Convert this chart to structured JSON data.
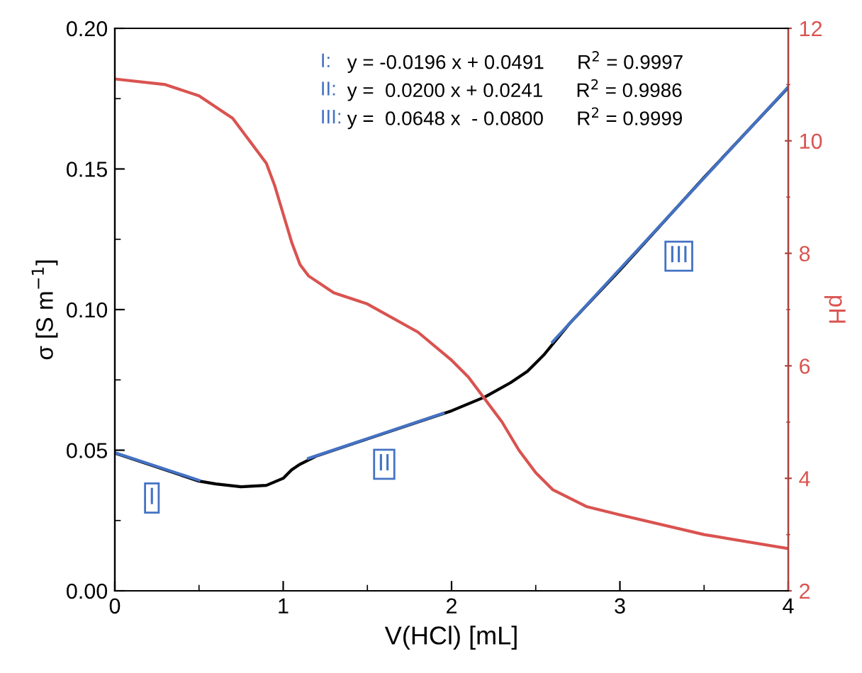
{
  "chart_data": {
    "type": "line",
    "xlabel": "V(HCl) [mL]",
    "ylabel": "σ [S m$^{−1}$]",
    "y2label": "pH",
    "xlim": [
      0,
      4
    ],
    "xticks": [
      0,
      1,
      2,
      3,
      4
    ],
    "ylim": [
      0,
      0.2
    ],
    "yticks": [
      {
        "value": 0,
        "label": "0.00"
      },
      {
        "value": 0.05,
        "label": "0.05"
      },
      {
        "value": 0.1,
        "label": "0.10"
      },
      {
        "value": 0.15,
        "label": "0.15"
      },
      {
        "value": 0.2,
        "label": "0.20"
      }
    ],
    "y2lim": [
      2,
      12
    ],
    "y2ticks": [
      2,
      4,
      6,
      8,
      10,
      12
    ],
    "grid": false,
    "legend": false,
    "marker": "none",
    "line_style": "solid",
    "series": [
      {
        "color": "#000000",
        "x": [
          0,
          0.25,
          0.5,
          0.6,
          0.75,
          0.9,
          1.0,
          1.05,
          1.1,
          1.2,
          1.5,
          1.8,
          2.0,
          2.2,
          2.35,
          2.45,
          2.55,
          2.7,
          3.0,
          3.5,
          4.0
        ],
        "values": [
          0.049,
          0.044,
          0.039,
          0.038,
          0.037,
          0.0375,
          0.04,
          0.043,
          0.045,
          0.048,
          0.054,
          0.06,
          0.064,
          0.069,
          0.074,
          0.078,
          0.084,
          0.095,
          0.114,
          0.147,
          0.179
        ]
      },
      {
        "color": "#4472c4",
        "x": [
          0,
          0.5
        ],
        "values": [
          0.0491,
          0.0393
        ]
      },
      {
        "color": "#4472c4",
        "x": [
          1.15,
          1.95
        ],
        "values": [
          0.0471,
          0.0631
        ]
      },
      {
        "color": "#4472c4",
        "x": [
          2.6,
          4.0
        ],
        "values": [
          0.0885,
          0.1792
        ]
      },
      {
        "color": "#d95350",
        "axis": "y2",
        "x": [
          0,
          0.3,
          0.5,
          0.7,
          0.8,
          0.9,
          0.95,
          1.0,
          1.05,
          1.1,
          1.15,
          1.3,
          1.5,
          1.8,
          2.0,
          2.1,
          2.2,
          2.3,
          2.4,
          2.5,
          2.6,
          2.8,
          3.0,
          3.5,
          4.0
        ],
        "values": [
          11.1,
          11.0,
          10.8,
          10.4,
          10.0,
          9.6,
          9.2,
          8.7,
          8.2,
          7.8,
          7.6,
          7.3,
          7.1,
          6.6,
          6.1,
          5.8,
          5.4,
          5.0,
          4.5,
          4.1,
          3.8,
          3.5,
          3.35,
          3.0,
          2.75
        ]
      }
    ],
    "annotations": [
      "I:   y = -0.0196 x + 0.0491      R$^{2}$ = 0.9997",
      "II:  y =  0.0200 x + 0.0241      R$^{2}$ = 0.9986",
      "III: y =  0.0648 x  - 0.0800      R$^{2}$ = 0.9999",
      {
        "text": "I",
        "x": 0.22,
        "y": 0.033
      },
      {
        "text": "II",
        "x": 1.6,
        "y": 0.045
      },
      {
        "text": "III",
        "x": 3.35,
        "y": 0.119
      }
    ]
  }
}
